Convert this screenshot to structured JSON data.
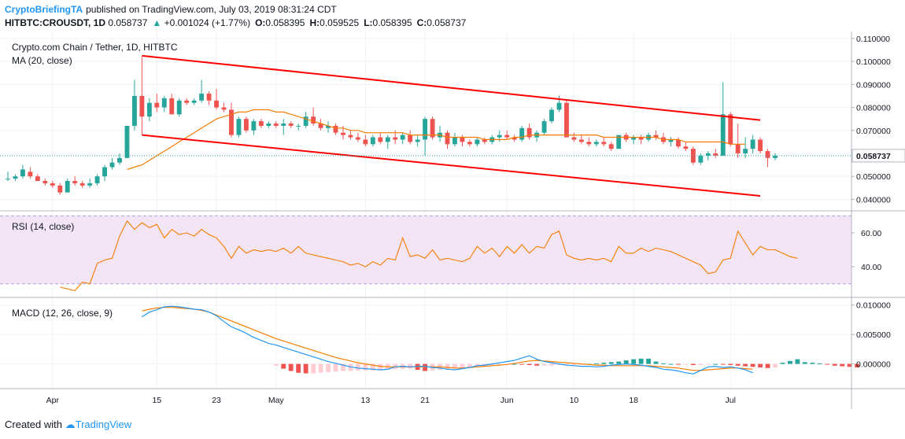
{
  "header": {
    "author": "CryptoBriefingTA",
    "published_text": "published on TradingView.com, July 03, 2019 08:31:24 CDT",
    "symbol": "HITBTC:CROUSDT, 1D",
    "last": "0.058737",
    "change": "+0.001024 (+1.77%)",
    "open_label": "O:",
    "open": "0.058395",
    "high_label": "H:",
    "high": "0.059525",
    "low_label": "L:",
    "low": "0.058395",
    "close_label": "C:",
    "close": "0.058737"
  },
  "footer": {
    "created_with": "Created with",
    "brand": "TradingView"
  },
  "colors": {
    "up": "#26a69a",
    "down": "#ef5350",
    "ma": "#f57c00",
    "channel": "#ff0000",
    "rsi": "#f57c00",
    "rsi_band": "#f3e5f5",
    "macd": "#2196f3",
    "signal": "#f57c00",
    "hist_pos": "#26a69a",
    "hist_neg": "#ef5350",
    "hist_neg_light": "#ffcdd2"
  },
  "chart_data": {
    "type": "candlestick",
    "title": "Crypto.com Chain / Tether, 1D, HITBTC",
    "last_price_label": "0.058737",
    "x_ticks": [
      {
        "label": "Apr",
        "i": 6
      },
      {
        "label": "15",
        "i": 20
      },
      {
        "label": "23",
        "i": 28
      },
      {
        "label": "May",
        "i": 36
      },
      {
        "label": "13",
        "i": 48
      },
      {
        "label": "21",
        "i": 56
      },
      {
        "label": "Jun",
        "i": 67
      },
      {
        "label": "10",
        "i": 76
      },
      {
        "label": "18",
        "i": 84
      },
      {
        "label": "Jul",
        "i": 97
      }
    ],
    "price_panel": {
      "legend": "MA (20, close)",
      "ylim": [
        0.035,
        0.111
      ],
      "y_ticks": [
        "0.110000",
        "0.100000",
        "0.090000",
        "0.080000",
        "0.070000",
        "0.060000",
        "0.050000",
        "0.040000"
      ],
      "candles": [
        [
          0.049,
          0.052,
          0.048,
          0.049
        ],
        [
          0.049,
          0.051,
          0.048,
          0.05
        ],
        [
          0.05,
          0.055,
          0.049,
          0.053
        ],
        [
          0.052,
          0.054,
          0.049,
          0.05
        ],
        [
          0.05,
          0.051,
          0.048,
          0.048
        ],
        [
          0.048,
          0.049,
          0.046,
          0.047
        ],
        [
          0.047,
          0.048,
          0.045,
          0.046
        ],
        [
          0.046,
          0.047,
          0.042,
          0.043
        ],
        [
          0.043,
          0.049,
          0.043,
          0.048
        ],
        [
          0.048,
          0.05,
          0.046,
          0.047
        ],
        [
          0.047,
          0.048,
          0.045,
          0.046
        ],
        [
          0.046,
          0.049,
          0.045,
          0.047
        ],
        [
          0.047,
          0.051,
          0.046,
          0.05
        ],
        [
          0.05,
          0.055,
          0.048,
          0.054
        ],
        [
          0.054,
          0.058,
          0.053,
          0.056
        ],
        [
          0.056,
          0.06,
          0.055,
          0.058
        ],
        [
          0.058,
          0.072,
          0.058,
          0.072
        ],
        [
          0.072,
          0.092,
          0.07,
          0.085
        ],
        [
          0.085,
          0.102,
          0.068,
          0.076
        ],
        [
          0.076,
          0.084,
          0.074,
          0.082
        ],
        [
          0.082,
          0.086,
          0.078,
          0.08
        ],
        [
          0.08,
          0.085,
          0.078,
          0.084
        ],
        [
          0.084,
          0.086,
          0.077,
          0.077
        ],
        [
          0.077,
          0.084,
          0.076,
          0.083
        ],
        [
          0.083,
          0.084,
          0.081,
          0.082
        ],
        [
          0.082,
          0.084,
          0.081,
          0.083
        ],
        [
          0.083,
          0.092,
          0.082,
          0.086
        ],
        [
          0.086,
          0.087,
          0.081,
          0.083
        ],
        [
          0.083,
          0.088,
          0.079,
          0.08
        ],
        [
          0.08,
          0.082,
          0.078,
          0.079
        ],
        [
          0.079,
          0.082,
          0.067,
          0.068
        ],
        [
          0.068,
          0.076,
          0.067,
          0.075
        ],
        [
          0.075,
          0.076,
          0.069,
          0.07
        ],
        [
          0.07,
          0.075,
          0.068,
          0.074
        ],
        [
          0.074,
          0.075,
          0.071,
          0.072
        ],
        [
          0.072,
          0.074,
          0.071,
          0.073
        ],
        [
          0.073,
          0.074,
          0.071,
          0.072
        ],
        [
          0.072,
          0.075,
          0.068,
          0.073
        ],
        [
          0.073,
          0.074,
          0.071,
          0.072
        ],
        [
          0.072,
          0.073,
          0.07,
          0.072
        ],
        [
          0.072,
          0.078,
          0.071,
          0.076
        ],
        [
          0.076,
          0.08,
          0.072,
          0.073
        ],
        [
          0.073,
          0.075,
          0.07,
          0.071
        ],
        [
          0.071,
          0.074,
          0.069,
          0.072
        ],
        [
          0.072,
          0.073,
          0.068,
          0.069
        ],
        [
          0.069,
          0.072,
          0.066,
          0.068
        ],
        [
          0.068,
          0.07,
          0.066,
          0.067
        ],
        [
          0.067,
          0.069,
          0.065,
          0.066
        ],
        [
          0.066,
          0.068,
          0.063,
          0.064
        ],
        [
          0.064,
          0.068,
          0.063,
          0.067
        ],
        [
          0.067,
          0.069,
          0.064,
          0.065
        ],
        [
          0.065,
          0.068,
          0.062,
          0.067
        ],
        [
          0.067,
          0.07,
          0.064,
          0.066
        ],
        [
          0.066,
          0.069,
          0.064,
          0.068
        ],
        [
          0.068,
          0.07,
          0.064,
          0.065
        ],
        [
          0.065,
          0.068,
          0.063,
          0.066
        ],
        [
          0.066,
          0.076,
          0.059,
          0.075
        ],
        [
          0.075,
          0.076,
          0.066,
          0.067
        ],
        [
          0.067,
          0.072,
          0.065,
          0.069
        ],
        [
          0.069,
          0.07,
          0.062,
          0.064
        ],
        [
          0.064,
          0.069,
          0.063,
          0.067
        ],
        [
          0.067,
          0.068,
          0.063,
          0.065
        ],
        [
          0.065,
          0.066,
          0.063,
          0.064
        ],
        [
          0.064,
          0.067,
          0.063,
          0.066
        ],
        [
          0.066,
          0.067,
          0.064,
          0.065
        ],
        [
          0.065,
          0.068,
          0.064,
          0.067
        ],
        [
          0.067,
          0.07,
          0.065,
          0.068
        ],
        [
          0.068,
          0.07,
          0.066,
          0.067
        ],
        [
          0.067,
          0.068,
          0.065,
          0.066
        ],
        [
          0.066,
          0.072,
          0.065,
          0.071
        ],
        [
          0.071,
          0.073,
          0.066,
          0.067
        ],
        [
          0.067,
          0.07,
          0.065,
          0.069
        ],
        [
          0.069,
          0.075,
          0.068,
          0.074
        ],
        [
          0.074,
          0.08,
          0.073,
          0.079
        ],
        [
          0.079,
          0.085,
          0.078,
          0.082
        ],
        [
          0.082,
          0.083,
          0.067,
          0.067
        ],
        [
          0.067,
          0.069,
          0.065,
          0.066
        ],
        [
          0.066,
          0.068,
          0.064,
          0.065
        ],
        [
          0.065,
          0.067,
          0.063,
          0.064
        ],
        [
          0.064,
          0.066,
          0.063,
          0.065
        ],
        [
          0.065,
          0.067,
          0.063,
          0.064
        ],
        [
          0.064,
          0.065,
          0.061,
          0.062
        ],
        [
          0.062,
          0.068,
          0.062,
          0.068
        ],
        [
          0.068,
          0.069,
          0.065,
          0.066
        ],
        [
          0.066,
          0.068,
          0.064,
          0.067
        ],
        [
          0.067,
          0.068,
          0.064,
          0.066
        ],
        [
          0.066,
          0.069,
          0.065,
          0.068
        ],
        [
          0.068,
          0.07,
          0.066,
          0.067
        ],
        [
          0.067,
          0.069,
          0.064,
          0.065
        ],
        [
          0.065,
          0.067,
          0.063,
          0.066
        ],
        [
          0.066,
          0.067,
          0.062,
          0.063
        ],
        [
          0.063,
          0.065,
          0.061,
          0.062
        ],
        [
          0.062,
          0.063,
          0.055,
          0.056
        ],
        [
          0.056,
          0.06,
          0.055,
          0.059
        ],
        [
          0.059,
          0.061,
          0.057,
          0.06
        ],
        [
          0.06,
          0.062,
          0.058,
          0.059
        ],
        [
          0.059,
          0.091,
          0.059,
          0.077
        ],
        [
          0.077,
          0.078,
          0.063,
          0.064
        ],
        [
          0.064,
          0.073,
          0.058,
          0.06
        ],
        [
          0.06,
          0.067,
          0.058,
          0.062
        ],
        [
          0.062,
          0.068,
          0.06,
          0.066
        ],
        [
          0.066,
          0.067,
          0.06,
          0.061
        ],
        [
          0.061,
          0.062,
          0.054,
          0.058
        ],
        [
          0.058,
          0.06,
          0.057,
          0.059
        ]
      ],
      "ma": [
        null,
        null,
        null,
        null,
        null,
        null,
        null,
        null,
        null,
        null,
        null,
        null,
        null,
        null,
        null,
        null,
        0.053,
        0.054,
        0.055,
        0.057,
        0.059,
        0.061,
        0.063,
        0.065,
        0.067,
        0.069,
        0.071,
        0.073,
        0.075,
        0.076,
        0.077,
        0.078,
        0.078,
        0.079,
        0.079,
        0.079,
        0.078,
        0.078,
        0.077,
        0.076,
        0.075,
        0.074,
        0.073,
        0.072,
        0.071,
        0.071,
        0.07,
        0.07,
        0.069,
        0.069,
        0.069,
        0.069,
        0.069,
        0.069,
        0.068,
        0.068,
        0.068,
        0.068,
        0.068,
        0.067,
        0.067,
        0.067,
        0.067,
        0.067,
        0.066,
        0.066,
        0.066,
        0.066,
        0.067,
        0.067,
        0.068,
        0.068,
        0.068,
        0.068,
        0.068,
        0.068,
        0.068,
        0.068,
        0.068,
        0.068,
        0.067,
        0.067,
        0.067,
        0.067,
        0.067,
        0.067,
        0.067,
        0.067,
        0.066,
        0.066,
        0.066,
        0.065,
        0.065,
        0.065,
        0.065,
        0.065,
        0.065,
        0.064,
        0.064,
        0.064
      ],
      "channel_upper": [
        [
          18,
          0.1025
        ],
        [
          101,
          0.0745
        ]
      ],
      "channel_lower": [
        [
          18,
          0.068
        ],
        [
          101,
          0.0415
        ]
      ]
    },
    "rsi_panel": {
      "legend": "RSI (14, close)",
      "ylim": [
        22,
        72
      ],
      "band": [
        30,
        70
      ],
      "y_ticks": [
        "60.00",
        "40.00"
      ],
      "values": [
        null,
        null,
        null,
        null,
        null,
        null,
        null,
        28,
        27,
        26,
        31,
        30,
        42,
        44,
        45,
        58,
        67,
        62,
        66,
        63,
        65,
        57,
        62,
        59,
        60,
        58,
        62,
        59,
        57,
        52,
        45,
        52,
        48,
        50,
        49,
        50,
        49,
        51,
        48,
        52,
        48,
        47,
        46,
        45,
        44,
        43,
        41,
        42,
        40,
        43,
        41,
        45,
        44,
        57,
        46,
        47,
        45,
        50,
        44,
        45,
        44,
        43,
        45,
        52,
        48,
        51,
        46,
        52,
        48,
        53,
        48,
        52,
        51,
        59,
        61,
        47,
        45,
        44,
        45,
        44,
        45,
        43,
        52,
        48,
        48,
        51,
        49,
        51,
        50,
        49,
        47,
        45,
        43,
        41,
        36,
        37,
        44,
        45,
        61,
        54,
        47,
        52,
        50,
        50,
        48,
        46,
        45
      ],
      "offset": -5
    },
    "macd_panel": {
      "legend": "MACD (12, 26, close, 9)",
      "ylim": [
        -0.0042,
        0.0105
      ],
      "y_ticks": [
        "0.010000",
        "0.005000",
        "0.000000"
      ],
      "macd_start": 18,
      "macd": [
        0.008,
        0.0088,
        0.0092,
        0.0097,
        0.0098,
        0.0097,
        0.0095,
        0.0093,
        0.0092,
        0.0088,
        0.0082,
        0.0072,
        0.0063,
        0.0058,
        0.0052,
        0.0045,
        0.004,
        0.0035,
        0.0032,
        0.0028,
        0.0024,
        0.002,
        0.0016,
        0.0012,
        0.0008,
        0.0004,
        0.0001,
        -0.0002,
        -0.0005,
        -0.0007,
        -0.0008,
        -0.0009,
        -0.001,
        -0.0009,
        -0.0005,
        -0.0004,
        -0.0005,
        -0.0004,
        -0.0004,
        -0.0006,
        -0.0007,
        -0.0009,
        -0.001,
        -0.0008,
        -0.0006,
        -0.0003,
        -0.0002,
        0.0,
        0.0002,
        0.0004,
        0.0006,
        0.001,
        0.0014,
        0.0008,
        0.0004,
        0.0002,
        0.0,
        -0.0002,
        -0.0003,
        -0.0004,
        -0.0004,
        -0.0005,
        -0.0004,
        -0.0002,
        -0.0001,
        0.0,
        -0.0001,
        -0.0002,
        -0.0004,
        -0.0006,
        -0.0009,
        -0.001,
        -0.0012,
        -0.0015,
        -0.0017,
        -0.0011,
        -0.0005,
        -0.0004,
        -0.0006,
        -0.0005,
        -0.0007,
        -0.001,
        -0.0015
      ],
      "signal": [
        0.009,
        0.0093,
        0.0095,
        0.0096,
        0.0096,
        0.0095,
        0.0094,
        0.0093,
        0.0091,
        0.0088,
        0.0083,
        0.0078,
        0.0073,
        0.0068,
        0.0063,
        0.0058,
        0.0053,
        0.0048,
        0.0043,
        0.0039,
        0.0035,
        0.0031,
        0.0027,
        0.0023,
        0.0019,
        0.0015,
        0.0011,
        0.0008,
        0.0005,
        0.0002,
        0.0,
        -0.0002,
        -0.0004,
        -0.0005,
        -0.0005,
        -0.0005,
        -0.0005,
        -0.0005,
        -0.0005,
        -0.0005,
        -0.0005,
        -0.0006,
        -0.0007,
        -0.0007,
        -0.0006,
        -0.0005,
        -0.0004,
        -0.0003,
        -0.0002,
        -0.0001,
        0.0001,
        0.0003,
        0.0005,
        0.0006,
        0.0005,
        0.0004,
        0.0003,
        0.0002,
        0.0001,
        0.0,
        -0.0001,
        -0.0002,
        -0.0002,
        -0.0003,
        -0.0003,
        -0.0003,
        -0.0003,
        -0.0003,
        -0.0003,
        -0.0004,
        -0.0005,
        -0.0006,
        -0.0007,
        -0.0009,
        -0.0011,
        -0.0011,
        -0.001,
        -0.0009,
        -0.0008,
        -0.0007,
        -0.0007,
        -0.0008,
        -0.0009
      ],
      "hist_start": 36,
      "hist": [
        -0.0003,
        -0.0008,
        -0.0012,
        -0.0015,
        -0.0016,
        -0.0016,
        -0.0015,
        -0.0014,
        -0.0013,
        -0.0012,
        -0.0012,
        -0.0011,
        -0.0011,
        -0.0011,
        -0.0011,
        -0.001,
        -0.0009,
        -0.0008,
        -0.0008,
        -0.001,
        -0.0012,
        -0.0011,
        -0.001,
        -0.0009,
        -0.0008,
        -0.0007,
        -0.0006,
        -0.0004,
        -0.0003,
        -0.0002,
        -0.0001,
        -0.0001,
        0.0,
        -0.0001,
        -0.0002,
        -0.0003,
        -0.0003,
        -0.0003,
        -0.0002,
        -0.0002,
        -0.0002,
        -0.0001,
        0.0,
        0.0001,
        0.0002,
        0.0003,
        0.0004,
        0.0006,
        0.0008,
        0.0009,
        0.0009,
        0.0004,
        0.0001,
        0.0,
        -0.0001,
        -0.0001,
        -0.0002,
        -0.0002,
        -0.0001,
        0.0,
        -0.0001,
        -0.0002,
        -0.0003,
        -0.0004,
        -0.0005,
        -0.0006,
        -0.0007,
        -0.0006,
        0.0002,
        0.0005,
        0.0008,
        0.0003,
        0.0002,
        0.0001,
        -0.0001,
        -0.0003,
        -0.0004,
        -0.0005,
        -0.0006
      ]
    }
  }
}
